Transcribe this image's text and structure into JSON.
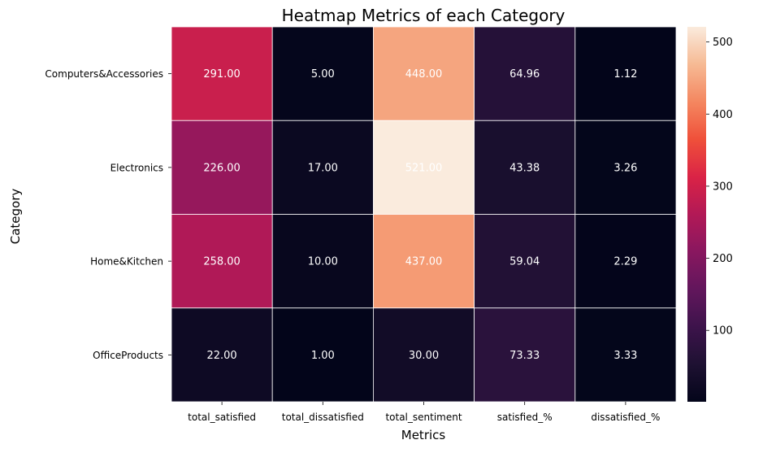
{
  "chart_data": {
    "type": "heatmap",
    "title": "Heatmap Metrics of each Category",
    "xlabel": "Metrics",
    "ylabel": "Category",
    "columns": [
      "total_satisfied",
      "total_dissatisfied",
      "total_sentiment",
      "satisfied_%",
      "dissatisfied_%"
    ],
    "rows": [
      "Computers&Accessories",
      "Electronics",
      "Home&Kitchen",
      "OfficeProducts"
    ],
    "values": [
      [
        291.0,
        5.0,
        448.0,
        64.96,
        1.12
      ],
      [
        226.0,
        17.0,
        521.0,
        43.38,
        3.26
      ],
      [
        258.0,
        10.0,
        437.0,
        59.04,
        2.29
      ],
      [
        22.0,
        1.0,
        30.0,
        73.33,
        3.33
      ]
    ],
    "annotations": [
      [
        "291.00",
        "5.00",
        "448.00",
        "64.96",
        "1.12"
      ],
      [
        "226.00",
        "17.00",
        "521.00",
        "43.38",
        "3.26"
      ],
      [
        "258.00",
        "10.00",
        "437.00",
        "59.04",
        "2.29"
      ],
      [
        "22.00",
        "1.00",
        "30.00",
        "73.33",
        "3.33"
      ]
    ],
    "colormap": "rocket",
    "colorbar": {
      "range": [
        1.0,
        521.0
      ],
      "ticks": [
        100,
        200,
        300,
        400,
        500
      ],
      "tick_labels": [
        "100",
        "200",
        "300",
        "400",
        "500"
      ]
    },
    "grid_lines_color": "#ffffff"
  }
}
